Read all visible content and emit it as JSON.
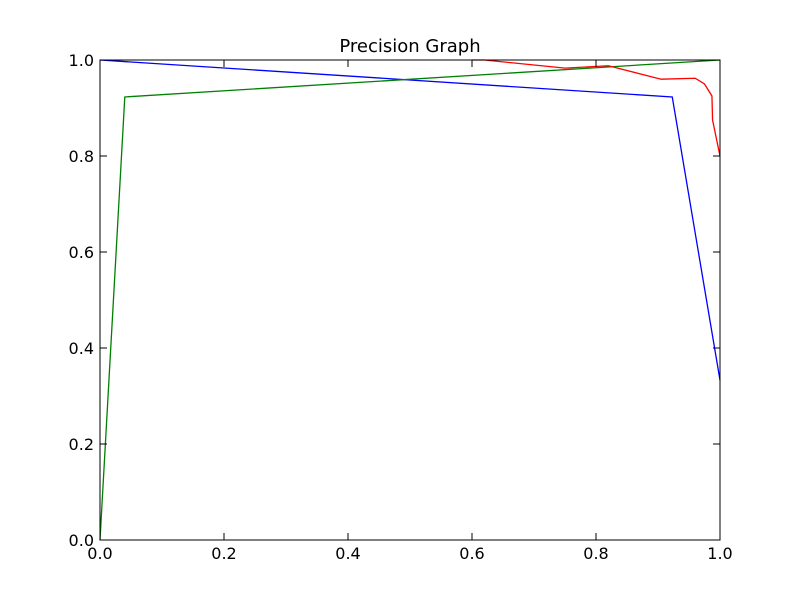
{
  "chart_data": {
    "type": "line",
    "title": "Precision Graph",
    "xlabel": "",
    "ylabel": "",
    "xlim": [
      0.0,
      1.0
    ],
    "ylim": [
      0.0,
      1.0
    ],
    "x_ticks": [
      "0.0",
      "0.2",
      "0.4",
      "0.6",
      "0.8",
      "1.0"
    ],
    "y_ticks": [
      "0.0",
      "0.2",
      "0.4",
      "0.6",
      "0.8",
      "1.0"
    ],
    "grid": false,
    "legend": "none",
    "series": [
      {
        "color": "#0000ff",
        "x": [
          0.0,
          0.923,
          1.0
        ],
        "y": [
          1.0,
          0.923,
          0.333
        ]
      },
      {
        "color": "#008000",
        "x": [
          0.0,
          0.04,
          1.0
        ],
        "y": [
          0.0,
          0.923,
          1.0
        ]
      },
      {
        "color": "#ff0000",
        "x": [
          0.6,
          0.62,
          0.75,
          0.82,
          0.905,
          0.96,
          0.975,
          0.987,
          0.988,
          1.0
        ],
        "y": [
          1.0,
          1.0,
          0.983,
          0.988,
          0.96,
          0.962,
          0.95,
          0.925,
          0.875,
          0.8
        ]
      }
    ]
  }
}
